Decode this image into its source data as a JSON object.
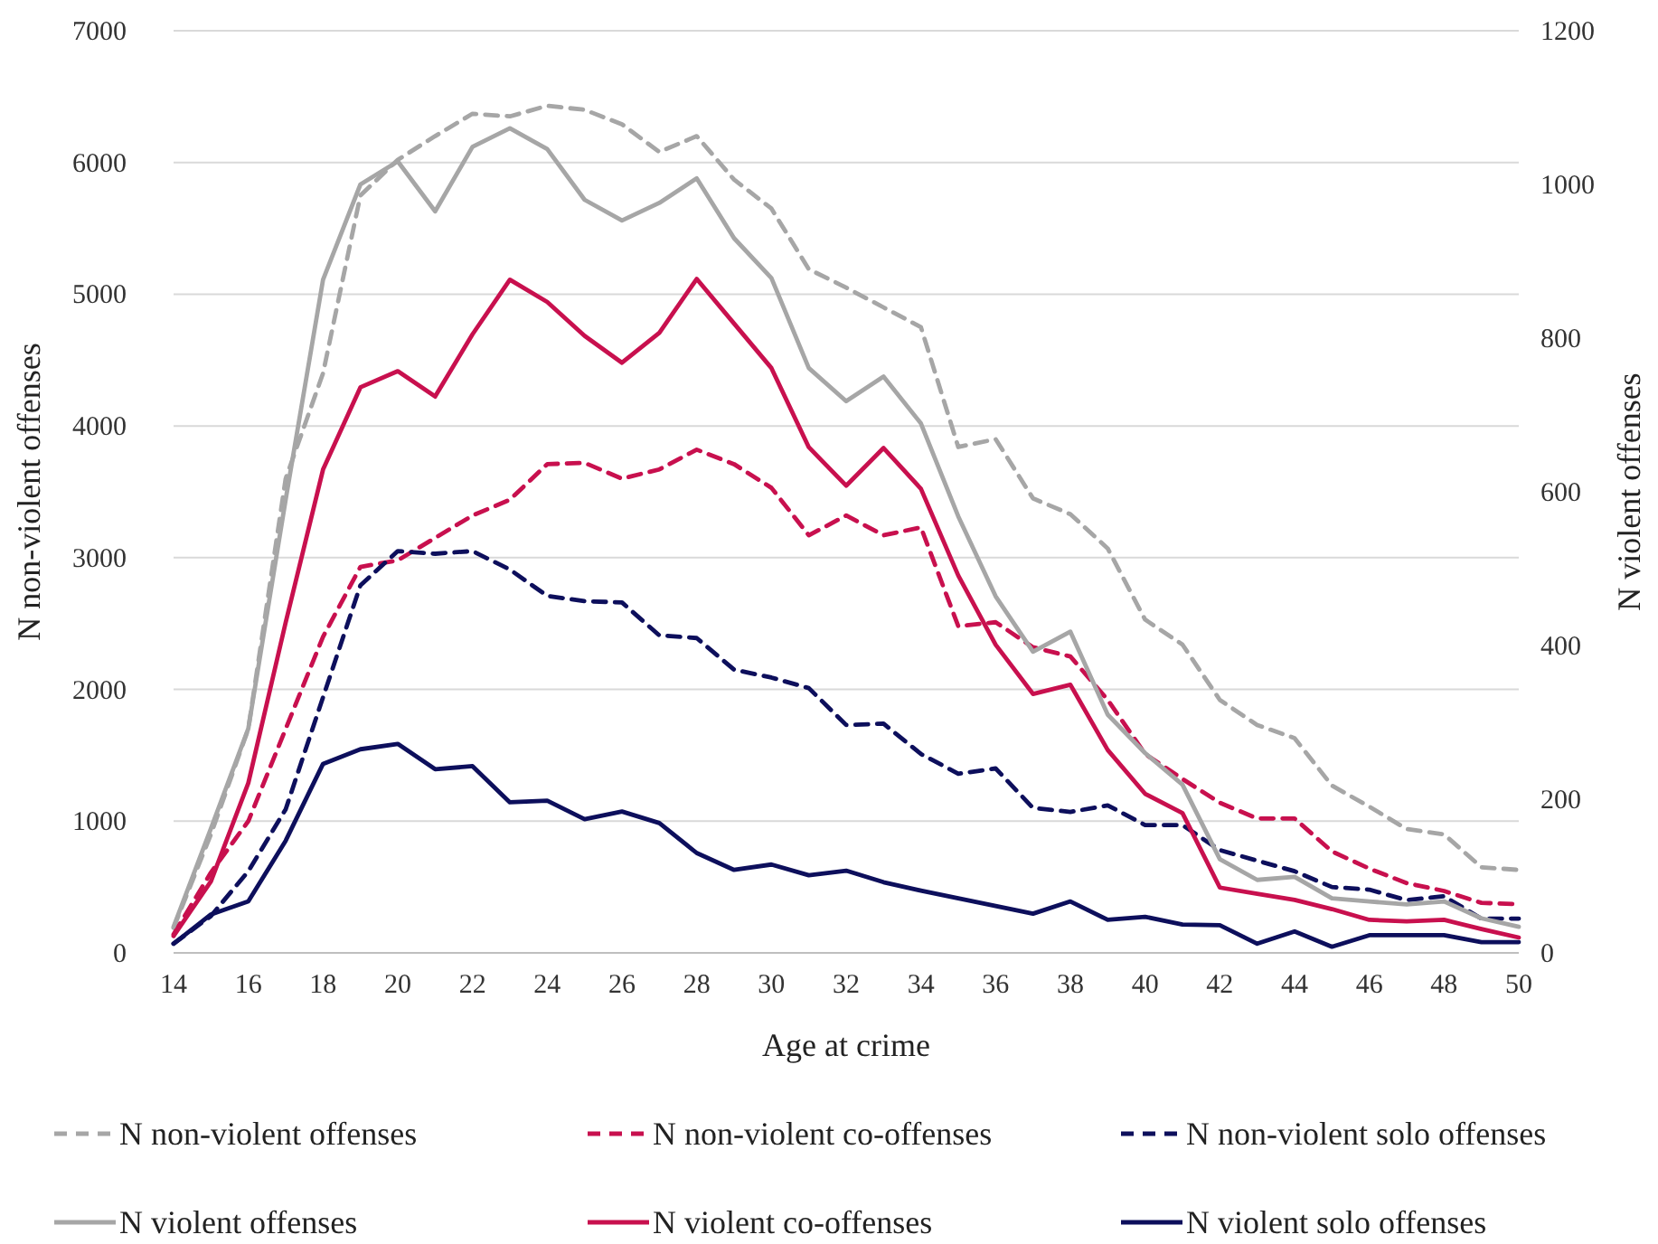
{
  "chart_data": {
    "type": "line",
    "xlabel": "Age at crime",
    "ylabel": "N non-violent offenses",
    "y2label": "N violent offenses",
    "x": [
      14,
      15,
      16,
      17,
      18,
      19,
      20,
      21,
      22,
      23,
      24,
      25,
      26,
      27,
      28,
      29,
      30,
      31,
      32,
      33,
      34,
      35,
      36,
      37,
      38,
      39,
      40,
      41,
      42,
      43,
      44,
      45,
      46,
      47,
      48,
      49,
      50
    ],
    "xlim": [
      14,
      50
    ],
    "xticks": [
      14,
      16,
      18,
      20,
      22,
      24,
      26,
      28,
      30,
      32,
      34,
      36,
      38,
      40,
      42,
      44,
      46,
      48,
      50
    ],
    "ylim": [
      0,
      7000
    ],
    "yticks": [
      0,
      1000,
      2000,
      3000,
      4000,
      5000,
      6000,
      7000
    ],
    "y2lim": [
      0,
      1200
    ],
    "y2ticks": [
      0,
      200,
      400,
      600,
      800,
      1000,
      1200
    ],
    "grid": "y",
    "legend": "bottom",
    "marker": "none",
    "series": [
      {
        "name": "N non-violent offenses",
        "color": "#a6a6a6",
        "line_style": "dashed",
        "values": [
          190,
          900,
          1700,
          3600,
          4400,
          5750,
          6020,
          6200,
          6370,
          6350,
          6430,
          6400,
          6290,
          6080,
          6200,
          5870,
          5650,
          5190,
          5050,
          4900,
          4750,
          3840,
          3900,
          3450,
          3330,
          3070,
          2530,
          2340,
          1920,
          1730,
          1630,
          1270,
          1110,
          940,
          900,
          650,
          630
        ]
      },
      {
        "name": "N non-violent co-offenses",
        "color": "#c8104e",
        "line_style": "dashed",
        "values": [
          140,
          610,
          1000,
          1700,
          2400,
          2930,
          2980,
          3150,
          3320,
          3440,
          3710,
          3720,
          3600,
          3670,
          3820,
          3710,
          3530,
          3170,
          3320,
          3170,
          3230,
          2480,
          2510,
          2320,
          2250,
          1920,
          1510,
          1320,
          1140,
          1020,
          1020,
          770,
          640,
          530,
          470,
          380,
          370
        ]
      },
      {
        "name": "N non-violent solo offenses",
        "color": "#0d0f5c",
        "line_style": "dashed",
        "values": [
          70,
          280,
          620,
          1090,
          1940,
          2790,
          3050,
          3030,
          3050,
          2910,
          2710,
          2670,
          2660,
          2410,
          2390,
          2150,
          2090,
          2010,
          1730,
          1740,
          1510,
          1360,
          1400,
          1100,
          1070,
          1120,
          970,
          970,
          780,
          700,
          620,
          500,
          480,
          400,
          430,
          260,
          260
        ]
      },
      {
        "name": "N violent offenses",
        "color": "#a6a6a6",
        "line_style": "solid",
        "axis": "y2",
        "values": [
          34,
          162,
          292,
          590,
          876,
          1000,
          1030,
          965,
          1049,
          1073,
          1046,
          980,
          953,
          976,
          1008,
          930,
          878,
          761,
          718,
          750,
          689,
          568,
          464,
          392,
          418,
          310,
          260,
          219,
          122,
          95,
          99,
          71,
          67,
          63,
          67,
          45,
          34
        ]
      },
      {
        "name": "N violent co-offenses",
        "color": "#c8104e",
        "line_style": "solid",
        "axis": "y2",
        "values": [
          22,
          93,
          221,
          430,
          629,
          736,
          757,
          724,
          805,
          876,
          847,
          803,
          768,
          807,
          877,
          819,
          761,
          658,
          608,
          657,
          604,
          491,
          401,
          337,
          349,
          264,
          207,
          182,
          85,
          77,
          69,
          57,
          43,
          41,
          43,
          31,
          20
        ]
      },
      {
        "name": "N violent solo offenses",
        "color": "#0d0f5c",
        "line_style": "solid",
        "axis": "y2",
        "values": [
          12,
          50,
          67,
          146,
          246,
          265,
          272,
          239,
          243,
          196,
          198,
          174,
          184,
          169,
          130,
          108,
          115,
          101,
          107,
          92,
          81,
          71,
          61,
          51,
          67,
          43,
          47,
          37,
          36,
          12,
          28,
          8,
          23,
          23,
          23,
          14,
          14
        ]
      }
    ]
  }
}
